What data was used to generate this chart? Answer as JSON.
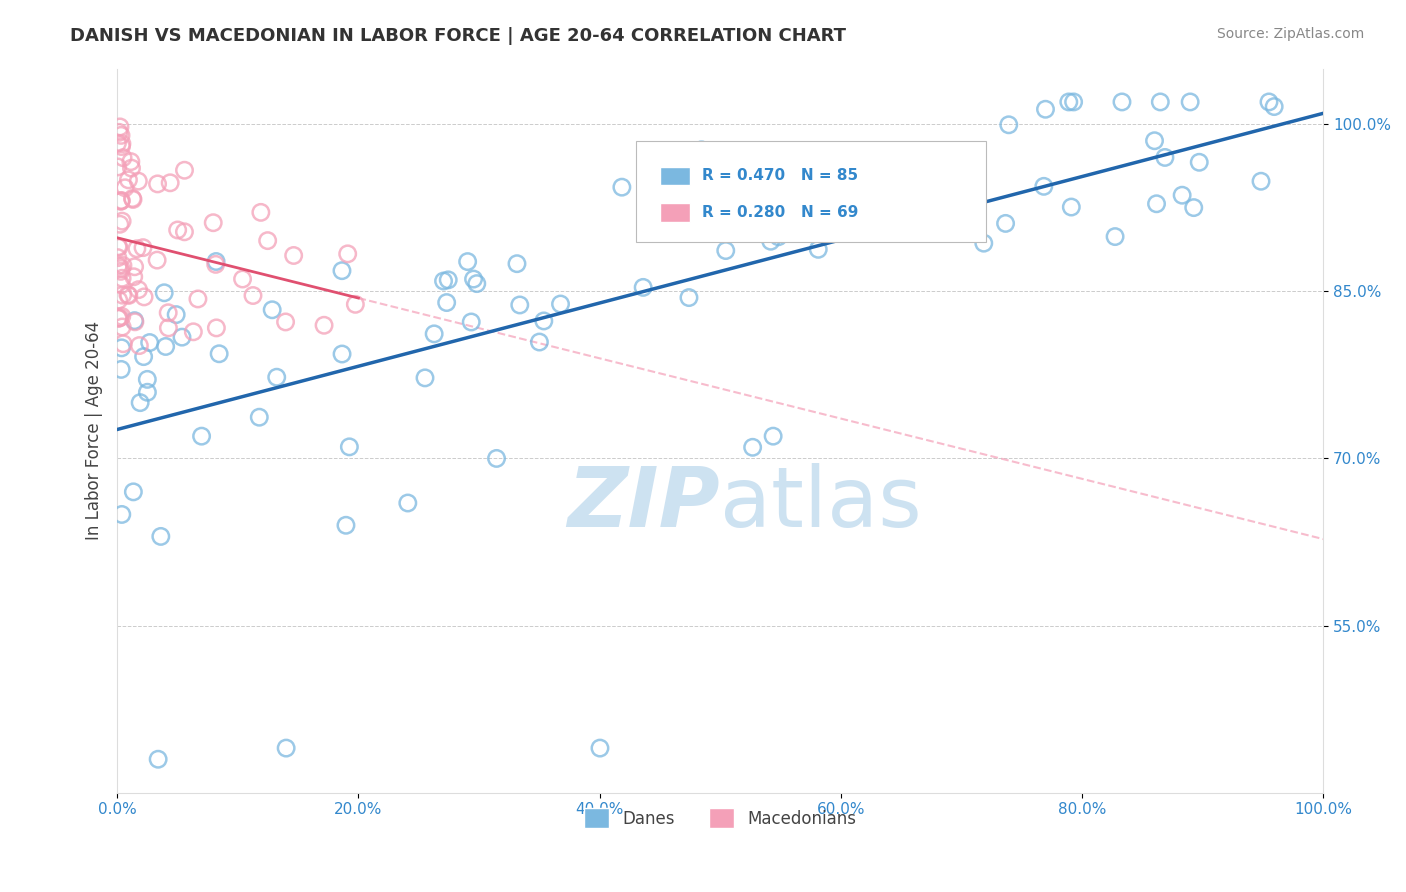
{
  "title": "DANISH VS MACEDONIAN IN LABOR FORCE | AGE 20-64 CORRELATION CHART",
  "source": "Source: ZipAtlas.com",
  "ylabel": "In Labor Force | Age 20-64",
  "xlim": [
    0.0,
    1.0
  ],
  "ylim": [
    0.4,
    1.05
  ],
  "xtick_labels": [
    "0.0%",
    "20.0%",
    "40.0%",
    "60.0%",
    "80.0%",
    "100.0%"
  ],
  "ytick_labels": [
    "55.0%",
    "70.0%",
    "85.0%",
    "100.0%"
  ],
  "ytick_vals": [
    0.55,
    0.7,
    0.85,
    1.0
  ],
  "danes_color": "#7bb8e0",
  "macedonians_color": "#f4a0b8",
  "danes_line_color": "#2166ac",
  "macedonians_line_color": "#e05070",
  "danes_R": 0.47,
  "danes_N": 85,
  "macedonians_R": 0.28,
  "macedonians_N": 69,
  "background_color": "#ffffff",
  "grid_color": "#cccccc",
  "title_color": "#333333",
  "axis_label_color": "#444444",
  "tick_color": "#3388cc",
  "watermark_color": "#c8dff0",
  "watermark_alpha": 0.9
}
